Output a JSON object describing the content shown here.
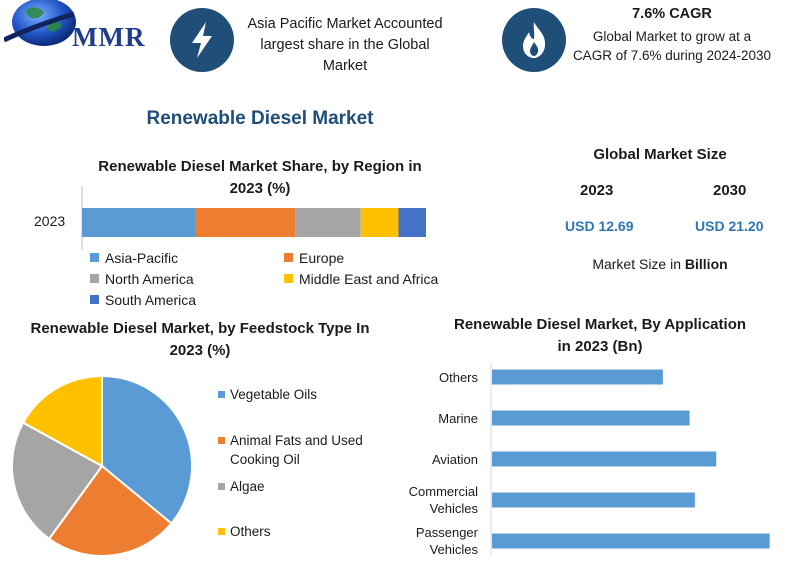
{
  "header": {
    "logo_text": "MMR",
    "stat_text": "Asia Pacific Market Accounted largest share in the Global Market",
    "cagr_title": "7.6% CAGR",
    "cagr_desc": "Global Market to grow at a CAGR of 7.6% during 2024-2030",
    "icons": [
      "globe-logo-icon",
      "lightning-bolt-icon",
      "flame-icon"
    ]
  },
  "main_title": "Renewable Diesel Market",
  "global_market_size": {
    "title": "Global Market Size",
    "year_a": "2023",
    "year_b": "2030",
    "value_a": "USD 12.69",
    "value_b": "USD 21.20",
    "note_prefix": "Market Size in ",
    "note_bold": "Billion"
  },
  "chart_data": [
    {
      "type": "bar",
      "orientation": "horizontal-stacked",
      "title": "Renewable Diesel Market Share, by Region in 2023 (%)",
      "categories": [
        "2023"
      ],
      "series": [
        {
          "name": "Asia-Pacific",
          "values": [
            33
          ],
          "color": "#5b9bd5"
        },
        {
          "name": "Europe",
          "values": [
            29
          ],
          "color": "#ed7d31"
        },
        {
          "name": "North America",
          "values": [
            19
          ],
          "color": "#a5a5a5"
        },
        {
          "name": "Middle East and Africa",
          "values": [
            11
          ],
          "color": "#ffc000"
        },
        {
          "name": "South America",
          "values": [
            8
          ],
          "color": "#4472c4"
        }
      ],
      "legend_position": "bottom"
    },
    {
      "type": "pie",
      "title": "Renewable Diesel Market, by Feedstock Type In 2023 (%)",
      "categories": [
        "Vegetable Oils",
        "Animal Fats and Used Cooking Oil",
        "Algae",
        "Others"
      ],
      "values": [
        36,
        24,
        23,
        17
      ],
      "colors": [
        "#5b9bd5",
        "#ed7d31",
        "#a5a5a5",
        "#ffc000"
      ],
      "legend_position": "right"
    },
    {
      "type": "bar",
      "orientation": "horizontal",
      "title": "Renewable Diesel Market, By Application in 2023 (Bn)",
      "categories": [
        "Others",
        "Marine",
        "Aviation",
        "Commercial Vehicles",
        "Passenger Vehicles"
      ],
      "category_lines": [
        [
          "Others"
        ],
        [
          "Marine"
        ],
        [
          "Aviation"
        ],
        [
          "Commercial",
          "Vehicles"
        ],
        [
          "Passenger",
          "Vehicles"
        ]
      ],
      "values": [
        1.6,
        1.85,
        2.1,
        1.9,
        2.6
      ],
      "xlim": [
        0,
        2.8
      ],
      "color": "#5b9bd5",
      "grid": false
    }
  ]
}
